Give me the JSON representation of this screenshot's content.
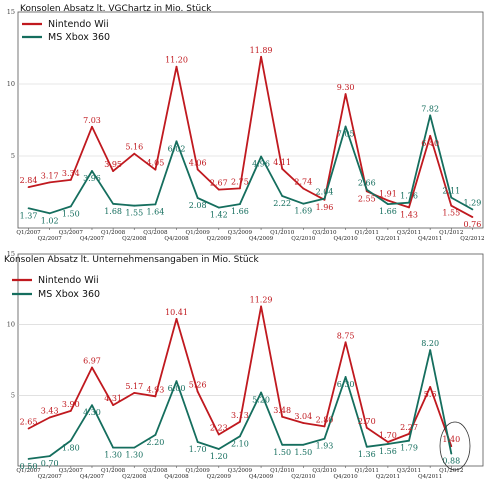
{
  "colors": {
    "nintendo": "#c0191f",
    "xbox": "#156e5e",
    "grid": "#cfcfcf",
    "axis": "#555555"
  },
  "chart_data": [
    {
      "type": "line",
      "title": "Konsolen Absatz lt. VGChartz in Mio. Stück",
      "categories": [
        "Q1/2007",
        "Q2/2007",
        "Q3/2007",
        "Q4/2007",
        "Q1/2008",
        "Q2/2008",
        "Q3/2008",
        "Q4/2008",
        "Q1/2009",
        "Q2/2009",
        "Q3/2009",
        "Q4/2009",
        "Q1/2010",
        "Q2/2010",
        "Q3/2010",
        "Q4/2010",
        "Q1/2011",
        "Q2/2011",
        "Q3/2011",
        "Q4/2011",
        "Q1/2012",
        "Q2/2012"
      ],
      "ylim": [
        0,
        15
      ],
      "yticks": [
        "5",
        "10",
        "15"
      ],
      "legend_position": "top-left",
      "series": [
        {
          "name": "Nintendo Wii",
          "values": [
            2.84,
            3.17,
            3.34,
            7.03,
            3.95,
            5.16,
            4.05,
            11.2,
            4.06,
            2.67,
            2.75,
            11.89,
            4.11,
            2.74,
            1.96,
            9.3,
            2.55,
            1.91,
            1.43,
            6.4,
            1.55,
            0.76
          ]
        },
        {
          "name": "MS Xbox 360",
          "values": [
            1.37,
            1.02,
            1.5,
            3.96,
            1.68,
            1.55,
            1.64,
            6.02,
            2.08,
            1.42,
            1.66,
            4.96,
            2.22,
            1.69,
            2.04,
            7.05,
            2.66,
            1.66,
            1.76,
            7.82,
            2.11,
            1.29
          ]
        }
      ],
      "data_labels": {
        "nintendo": [
          "2.84",
          "3.17",
          "3.34",
          "7.03",
          "3.95",
          "5.16",
          "4.05",
          "11.20",
          "4.06",
          "2.67",
          "2.75",
          "11.89",
          "4.11",
          "2.74",
          "1.96",
          "9.30",
          "2.55",
          "1.91",
          "1.43",
          "6.40",
          "1.55",
          "0.76"
        ],
        "xbox": [
          "1.37",
          "1.02",
          "1.50",
          "3.96",
          "1.68",
          "1.55",
          "1.64",
          "6.02",
          "2.08",
          "1.42",
          "1.66",
          "4.96",
          "2.22",
          "1.69",
          "2.04",
          "7.05",
          "2.66",
          "1.66",
          "1.76",
          "7.82",
          "2.11",
          "1.29"
        ]
      }
    },
    {
      "type": "line",
      "title": "Konsolen Absatz lt. Unternehmensangaben in Mio. Stück",
      "categories": [
        "Q1/2007",
        "Q2/2007",
        "Q3/2007",
        "Q4/2007",
        "Q1/2008",
        "Q2/2008",
        "Q3/2008",
        "Q4/2008",
        "Q1/2009",
        "Q2/2009",
        "Q3/2009",
        "Q4/2009",
        "Q1/2010",
        "Q2/2010",
        "Q3/2010",
        "Q4/2010",
        "Q1/2011",
        "Q2/2011",
        "Q3/2011",
        "Q4/2011",
        "Q1/2012"
      ],
      "ylim": [
        0,
        15
      ],
      "yticks": [
        "5",
        "10",
        "15"
      ],
      "legend_position": "top-left",
      "annotation": "circled Q1/2012 values",
      "series": [
        {
          "name": "Nintendo Wii",
          "values": [
            2.65,
            3.43,
            3.9,
            6.97,
            4.31,
            5.17,
            4.93,
            10.41,
            5.26,
            2.23,
            3.13,
            11.29,
            3.48,
            3.04,
            2.8,
            8.75,
            2.7,
            1.7,
            2.27,
            5.6,
            1.4
          ]
        },
        {
          "name": "MS Xbox 360",
          "values": [
            0.5,
            0.7,
            1.8,
            4.3,
            1.3,
            1.3,
            2.2,
            6.0,
            1.7,
            1.2,
            2.1,
            5.2,
            1.5,
            1.5,
            1.93,
            6.3,
            1.36,
            1.56,
            1.79,
            8.2,
            0.88
          ]
        }
      ],
      "data_labels": {
        "nintendo": [
          "2.65",
          "3.43",
          "3.90",
          "6.97",
          "4.31",
          "5.17",
          "4.93",
          "10.41",
          "5.26",
          "2.23",
          "3.13",
          "11.29",
          "3.48",
          "3.04",
          "2.80",
          "8.75",
          "2.70",
          "1.70",
          "2.27",
          "5.6",
          "1.40"
        ],
        "xbox": [
          "0.50",
          "0.70",
          "1.80",
          "4.30",
          "1.30",
          "1.30",
          "2.20",
          "6.00",
          "1.70",
          "1.20",
          "2.10",
          "5.20",
          "1.50",
          "1.50",
          "1.93",
          "6.30",
          "1.36",
          "1.56",
          "1.79",
          "8.20",
          "0.88"
        ]
      }
    }
  ]
}
